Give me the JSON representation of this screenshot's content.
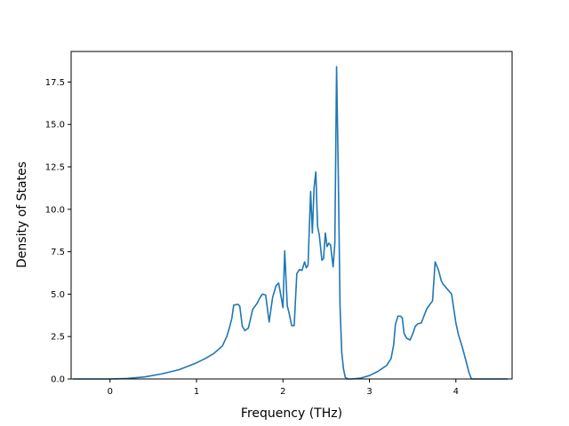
{
  "chart_data": {
    "type": "line",
    "title": "",
    "xlabel": "Frequency (THz)",
    "ylabel": "Density of States",
    "xlim": [
      -0.45,
      4.65
    ],
    "ylim": [
      0,
      19.3
    ],
    "x_ticks": [
      0,
      1,
      2,
      3,
      4
    ],
    "x_tick_labels": [
      "0",
      "1",
      "2",
      "3",
      "4"
    ],
    "y_ticks": [
      0,
      2.5,
      5,
      7.5,
      10,
      12.5,
      15,
      17.5
    ],
    "y_tick_labels": [
      "0.0",
      "2.5",
      "5.0",
      "7.5",
      "10.0",
      "12.5",
      "15.0",
      "17.5"
    ],
    "grid": false,
    "legend": "none",
    "series": [
      {
        "color": "#1f77b4",
        "x": [
          -0.43,
          0.0,
          0.2,
          0.4,
          0.6,
          0.8,
          1.0,
          1.1,
          1.2,
          1.3,
          1.35,
          1.38,
          1.41,
          1.43,
          1.48,
          1.5,
          1.53,
          1.56,
          1.6,
          1.65,
          1.7,
          1.73,
          1.76,
          1.8,
          1.84,
          1.88,
          1.92,
          1.95,
          1.98,
          2.0,
          2.02,
          2.05,
          2.07,
          2.1,
          2.13,
          2.16,
          2.19,
          2.22,
          2.25,
          2.27,
          2.29,
          2.3,
          2.32,
          2.34,
          2.36,
          2.38,
          2.4,
          2.42,
          2.45,
          2.47,
          2.49,
          2.51,
          2.53,
          2.55,
          2.58,
          2.6,
          2.62,
          2.64,
          2.66,
          2.68,
          2.7,
          2.72,
          2.75,
          2.78,
          2.8,
          2.9,
          3.0,
          3.1,
          3.2,
          3.25,
          3.28,
          3.3,
          3.33,
          3.36,
          3.38,
          3.4,
          3.43,
          3.47,
          3.5,
          3.53,
          3.56,
          3.6,
          3.63,
          3.66,
          3.7,
          3.73,
          3.76,
          3.8,
          3.83,
          3.85,
          3.9,
          3.95,
          4.0,
          4.03,
          4.07,
          4.12,
          4.15,
          4.18,
          4.3,
          4.6
        ],
        "y": [
          0.0,
          0.0,
          0.03,
          0.12,
          0.3,
          0.55,
          0.95,
          1.2,
          1.5,
          1.95,
          2.5,
          3.0,
          3.6,
          4.35,
          4.4,
          4.3,
          3.1,
          2.85,
          3.0,
          4.1,
          4.45,
          4.75,
          5.0,
          4.95,
          3.35,
          4.8,
          5.5,
          5.65,
          4.8,
          4.2,
          7.55,
          4.3,
          3.9,
          3.15,
          3.15,
          6.2,
          6.45,
          6.4,
          6.9,
          6.55,
          6.7,
          8.2,
          11.05,
          8.6,
          11.3,
          12.2,
          9.0,
          8.5,
          7.0,
          7.1,
          8.6,
          7.8,
          8.0,
          7.9,
          6.6,
          8.0,
          18.4,
          12.0,
          4.3,
          1.55,
          0.6,
          0.1,
          0.0,
          0.0,
          0.0,
          0.05,
          0.2,
          0.45,
          0.8,
          1.2,
          2.0,
          3.2,
          3.7,
          3.7,
          3.6,
          2.7,
          2.4,
          2.3,
          2.65,
          3.1,
          3.25,
          3.3,
          3.7,
          4.1,
          4.4,
          4.6,
          6.9,
          6.4,
          5.8,
          5.6,
          5.3,
          5.0,
          3.3,
          2.6,
          1.95,
          1.0,
          0.4,
          0.0,
          0.0,
          0.0
        ]
      }
    ]
  }
}
